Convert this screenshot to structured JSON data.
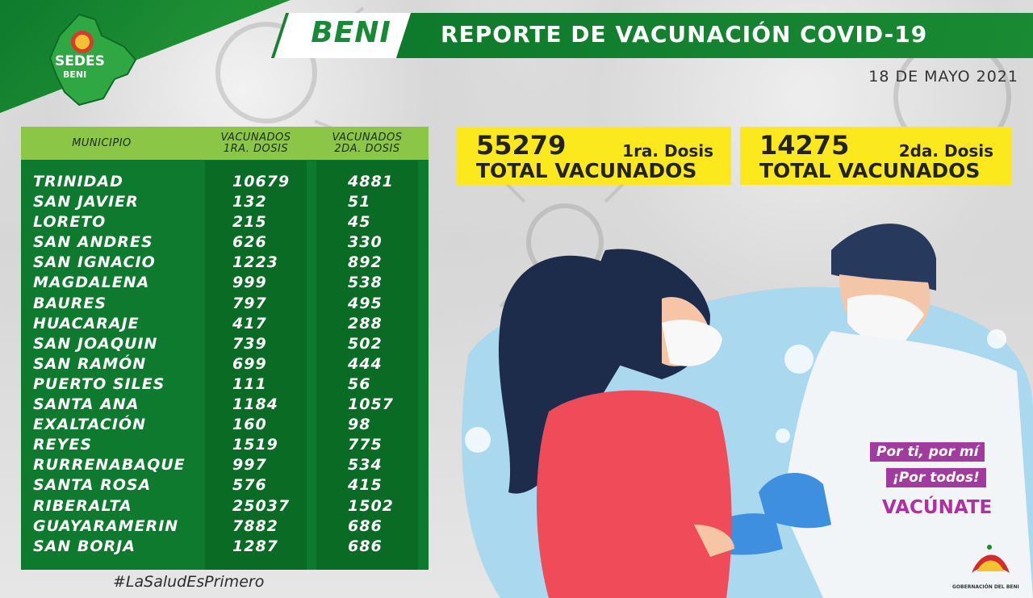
{
  "logo": {
    "line1": "SEDES",
    "line2": "BENI"
  },
  "header": {
    "region": "BENI",
    "title": "REPORTE DE VACUNACIÓN COVID-19",
    "date": "18 DE MAYO 2021"
  },
  "table": {
    "columns": [
      "MUNICIPIO",
      "VACUNADOS 1RA. DOSIS",
      "VACUNADOS 2DA. DOSIS"
    ],
    "col1_l1": "VACUNADOS",
    "col1_l2": "1RA. DOSIS",
    "col2_l1": "VACUNADOS",
    "col2_l2": "2DA. DOSIS",
    "rows": [
      {
        "municipio": "TRINIDAD",
        "dosis1": "10679",
        "dosis2": "4881"
      },
      {
        "municipio": "SAN JAVIER",
        "dosis1": "132",
        "dosis2": "51"
      },
      {
        "municipio": "LORETO",
        "dosis1": "215",
        "dosis2": "45"
      },
      {
        "municipio": "SAN ANDRES",
        "dosis1": "626",
        "dosis2": "330"
      },
      {
        "municipio": "SAN IGNACIO",
        "dosis1": "1223",
        "dosis2": "892"
      },
      {
        "municipio": "MAGDALENA",
        "dosis1": "999",
        "dosis2": "538"
      },
      {
        "municipio": "BAURES",
        "dosis1": "797",
        "dosis2": "495"
      },
      {
        "municipio": "HUACARAJE",
        "dosis1": "417",
        "dosis2": "288"
      },
      {
        "municipio": "SAN JOAQUIN",
        "dosis1": "739",
        "dosis2": "502"
      },
      {
        "municipio": "SAN RAMÓN",
        "dosis1": "699",
        "dosis2": "444"
      },
      {
        "municipio": "PUERTO SILES",
        "dosis1": "111",
        "dosis2": "56"
      },
      {
        "municipio": "SANTA ANA",
        "dosis1": "1184",
        "dosis2": "1057"
      },
      {
        "municipio": "EXALTACIÓN",
        "dosis1": "160",
        "dosis2": "98"
      },
      {
        "municipio": "REYES",
        "dosis1": "1519",
        "dosis2": "775"
      },
      {
        "municipio": "RURRENABAQUE",
        "dosis1": "997",
        "dosis2": "534"
      },
      {
        "municipio": "SANTA ROSA",
        "dosis1": "576",
        "dosis2": "415"
      },
      {
        "municipio": "RIBERALTA",
        "dosis1": "25037",
        "dosis2": "1502"
      },
      {
        "municipio": "GUAYARAMERIN",
        "dosis1": "7882",
        "dosis2": "686"
      },
      {
        "municipio": "SAN BORJA",
        "dosis1": "1287",
        "dosis2": "686"
      }
    ]
  },
  "totals": {
    "first": {
      "number": "55279",
      "dose": "1ra. Dosis",
      "label": "TOTAL VACUNADOS"
    },
    "second": {
      "number": "14275",
      "dose": "2da. Dosis",
      "label": "TOTAL VACUNADOS"
    }
  },
  "hashtag": "#LaSaludEsPrimero",
  "slogan": {
    "line1": "Por ti, por mí",
    "line2": "¡Por todos!",
    "line3": "VACÚNATE"
  },
  "footer_logo": "GOBERNACIÓN DEL BENI",
  "colors": {
    "green": "#0e7a2d",
    "light_green": "#8bc646",
    "yellow": "#fbe91d",
    "purple": "#a23b9f"
  }
}
